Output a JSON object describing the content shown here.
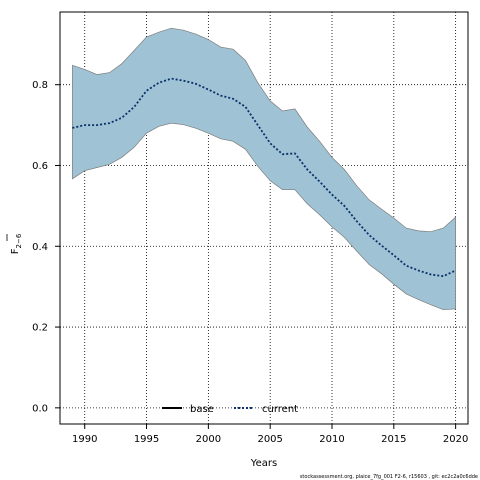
{
  "chart_data": {
    "type": "line",
    "xlabel": "Years",
    "ylabel_main": "F",
    "ylabel_sub": "2−6",
    "xlim": [
      1988,
      2021
    ],
    "ylim": [
      -0.04,
      0.98
    ],
    "x_ticks": [
      1990,
      1995,
      2000,
      2005,
      2010,
      2015,
      2020
    ],
    "y_ticks": [
      0.0,
      0.2,
      0.4,
      0.6,
      0.8
    ],
    "y_tick_labels": [
      "0.0",
      "0.2",
      "0.4",
      "0.6",
      "0.8"
    ],
    "grid": true,
    "legend_position": "bottom-center",
    "years": [
      1989,
      1990,
      1991,
      1992,
      1993,
      1994,
      1995,
      1996,
      1997,
      1998,
      1999,
      2000,
      2001,
      2002,
      2003,
      2004,
      2005,
      2006,
      2007,
      2008,
      2009,
      2010,
      2011,
      2012,
      2013,
      2014,
      2015,
      2016,
      2017,
      2018,
      2019,
      2020
    ],
    "series": [
      {
        "name": "current",
        "style": "dotted",
        "values": [
          0.693,
          0.7,
          0.7,
          0.705,
          0.718,
          0.745,
          0.785,
          0.805,
          0.815,
          0.81,
          0.802,
          0.788,
          0.773,
          0.765,
          0.745,
          0.7,
          0.655,
          0.628,
          0.63,
          0.59,
          0.56,
          0.528,
          0.5,
          0.462,
          0.428,
          0.402,
          0.378,
          0.352,
          0.34,
          0.33,
          0.326,
          0.34
        ]
      },
      {
        "name": "base",
        "style": "solid",
        "values": []
      }
    ],
    "band": {
      "upper": [
        0.848,
        0.838,
        0.825,
        0.83,
        0.852,
        0.885,
        0.918,
        0.93,
        0.94,
        0.935,
        0.925,
        0.912,
        0.893,
        0.888,
        0.86,
        0.805,
        0.76,
        0.735,
        0.74,
        0.695,
        0.66,
        0.62,
        0.59,
        0.55,
        0.515,
        0.492,
        0.47,
        0.445,
        0.438,
        0.436,
        0.445,
        0.472
      ],
      "lower": [
        0.567,
        0.587,
        0.595,
        0.603,
        0.62,
        0.645,
        0.68,
        0.697,
        0.705,
        0.701,
        0.692,
        0.68,
        0.666,
        0.66,
        0.64,
        0.598,
        0.562,
        0.54,
        0.54,
        0.505,
        0.478,
        0.448,
        0.422,
        0.388,
        0.355,
        0.332,
        0.306,
        0.282,
        0.268,
        0.255,
        0.243,
        0.245
      ]
    },
    "colors": {
      "band_fill": "#9fc3d4",
      "band_stroke": "#7c7c7c",
      "current_line": "#08306b",
      "base_line": "#000000",
      "grid": "#000000"
    }
  },
  "legend": [
    {
      "label": "base",
      "style": "solid",
      "color": "#000000"
    },
    {
      "label": "current",
      "style": "dotted",
      "color": "#08306b"
    }
  ],
  "footer": "stockassessment.org, plaice_7fg_001 F2-6, r15603 , git: ec2c2a0c6dde"
}
